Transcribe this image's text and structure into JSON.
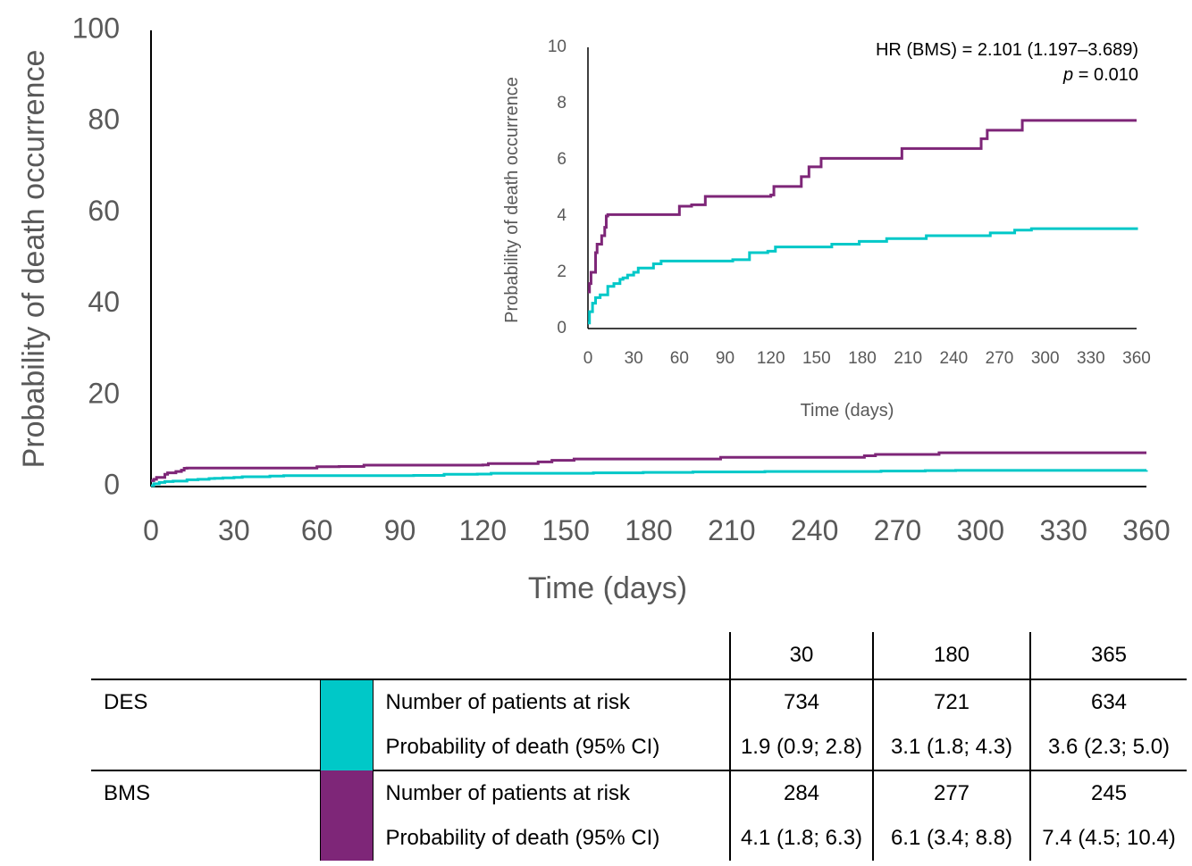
{
  "chart_data": [
    {
      "type": "line",
      "title": "",
      "xlabel": "Time (days)",
      "ylabel": "Probability of death occurrence",
      "xlim": [
        0,
        360
      ],
      "ylim": [
        0,
        100
      ],
      "x_ticks": [
        "0",
        "30",
        "60",
        "90",
        "120",
        "150",
        "180",
        "210",
        "240",
        "270",
        "300",
        "330",
        "360"
      ],
      "y_ticks": [
        "0",
        "20",
        "40",
        "60",
        "80",
        "100"
      ],
      "grid": false,
      "step": true,
      "series": [
        {
          "name": "DES",
          "color": "#00C8C8",
          "points": [
            [
              0,
              0.2
            ],
            [
              1,
              0.6
            ],
            [
              3,
              0.9
            ],
            [
              5,
              1.1
            ],
            [
              8,
              1.2
            ],
            [
              13,
              1.5
            ],
            [
              17,
              1.6
            ],
            [
              21,
              1.75
            ],
            [
              23,
              1.8
            ],
            [
              26,
              1.9
            ],
            [
              30,
              2.0
            ],
            [
              33,
              2.15
            ],
            [
              43,
              2.3
            ],
            [
              48,
              2.4
            ],
            [
              62,
              2.4
            ],
            [
              95,
              2.45
            ],
            [
              106,
              2.7
            ],
            [
              118,
              2.75
            ],
            [
              123,
              2.9
            ],
            [
              160,
              3.0
            ],
            [
              178,
              3.1
            ],
            [
              196,
              3.2
            ],
            [
              222,
              3.3
            ],
            [
              264,
              3.4
            ],
            [
              280,
              3.5
            ],
            [
              291,
              3.55
            ],
            [
              365,
              3.6
            ]
          ]
        },
        {
          "name": "BMS",
          "color": "#7E2678",
          "points": [
            [
              0,
              1.3
            ],
            [
              1,
              1.6
            ],
            [
              2,
              2.0
            ],
            [
              5,
              2.7
            ],
            [
              6,
              3.0
            ],
            [
              9,
              3.3
            ],
            [
              11,
              3.6
            ],
            [
              12,
              4.0
            ],
            [
              13,
              4.05
            ],
            [
              60,
              4.35
            ],
            [
              68,
              4.4
            ],
            [
              77,
              4.7
            ],
            [
              120,
              4.75
            ],
            [
              122,
              5.05
            ],
            [
              137,
              5.05
            ],
            [
              140,
              5.4
            ],
            [
              145,
              5.75
            ],
            [
              153,
              6.05
            ],
            [
              206,
              6.4
            ],
            [
              258,
              6.75
            ],
            [
              262,
              7.05
            ],
            [
              285,
              7.4
            ],
            [
              365,
              7.4
            ]
          ]
        }
      ]
    },
    {
      "type": "line",
      "title": "",
      "xlabel": "Time (days)",
      "ylabel": "Probability of death occurrence",
      "xlim": [
        0,
        360
      ],
      "ylim": [
        0,
        10
      ],
      "x_ticks": [
        "0",
        "30",
        "60",
        "90",
        "120",
        "150",
        "180",
        "210",
        "240",
        "270",
        "300",
        "330",
        "360"
      ],
      "y_ticks": [
        "0",
        "2",
        "4",
        "6",
        "8",
        "10"
      ],
      "grid": false,
      "step": true,
      "annotation": {
        "hr": "HR (BMS) = 2.101 (1.197–3.689)",
        "p_label": "p",
        "p_value": " = 0.010"
      },
      "series_ref": [
        "DES",
        "BMS"
      ]
    }
  ],
  "risk_table": {
    "columns": [
      "30",
      "180",
      "365"
    ],
    "groups": [
      {
        "name": "DES",
        "color": "#00C8C8",
        "rows": [
          {
            "label": "Number of patients at risk",
            "values": [
              "734",
              "721",
              "634"
            ]
          },
          {
            "label": "Probability of death (95% CI)",
            "values": [
              "1.9 (0.9; 2.8)",
              "3.1 (1.8; 4.3)",
              "3.6 (2.3; 5.0)"
            ]
          }
        ]
      },
      {
        "name": "BMS",
        "color": "#7E2678",
        "rows": [
          {
            "label": "Number of patients at risk",
            "values": [
              "284",
              "277",
              "245"
            ]
          },
          {
            "label": "Probability of death (95% CI)",
            "values": [
              "4.1 (1.8; 6.3)",
              "6.1 (3.4; 8.8)",
              "7.4 (4.5; 10.4)"
            ]
          }
        ]
      }
    ]
  }
}
